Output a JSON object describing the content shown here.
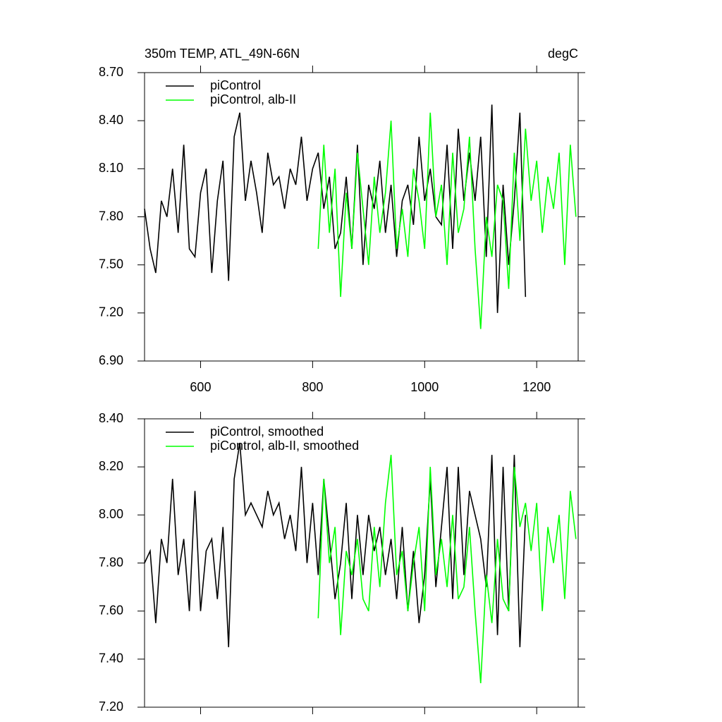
{
  "chart_data": [
    {
      "type": "line",
      "title": "350m TEMP, ATL_49N-66N",
      "units": "degC",
      "x": [
        500,
        510,
        520,
        530,
        540,
        550,
        560,
        570,
        580,
        590,
        600,
        610,
        620,
        630,
        640,
        650,
        660,
        670,
        680,
        690,
        700,
        710,
        720,
        730,
        740,
        750,
        760,
        770,
        780,
        790,
        800,
        810,
        820,
        830,
        840,
        850,
        860,
        870,
        880,
        890,
        900,
        910,
        920,
        930,
        940,
        950,
        960,
        970,
        980,
        990,
        1000,
        1010,
        1020,
        1030,
        1040,
        1050,
        1060,
        1070,
        1080,
        1090,
        1100,
        1110,
        1120,
        1130,
        1140,
        1150,
        1160,
        1170,
        1180,
        1190,
        1200,
        1210,
        1220,
        1230,
        1240,
        1250,
        1260,
        1270
      ],
      "series": [
        {
          "name": "piControl",
          "color": "#000000",
          "values": [
            7.85,
            7.6,
            7.45,
            7.9,
            7.8,
            8.1,
            7.7,
            8.25,
            7.6,
            7.55,
            7.95,
            8.1,
            7.45,
            7.9,
            8.15,
            7.4,
            8.3,
            8.45,
            7.9,
            8.15,
            7.95,
            7.7,
            8.2,
            8.0,
            8.05,
            7.85,
            8.1,
            8.0,
            8.3,
            7.9,
            8.1,
            8.2,
            7.85,
            8.05,
            7.6,
            7.7,
            8.05,
            7.6,
            8.25,
            7.5,
            8.0,
            7.85,
            8.15,
            7.7,
            8.0,
            7.55,
            7.9,
            8.0,
            7.75,
            8.3,
            7.9,
            8.1,
            7.8,
            7.75,
            8.25,
            7.6,
            8.35,
            7.9,
            8.2,
            7.9,
            8.3,
            7.55,
            8.5,
            7.2,
            8.0,
            7.5,
            7.9,
            8.45,
            7.3,
            null,
            null,
            null,
            null,
            null,
            null,
            null,
            null,
            null
          ]
        },
        {
          "name": "piControl, alb-II",
          "color": "#00ff00",
          "values": [
            null,
            null,
            null,
            null,
            null,
            null,
            null,
            null,
            null,
            null,
            null,
            null,
            null,
            null,
            null,
            null,
            null,
            null,
            null,
            null,
            null,
            null,
            null,
            null,
            null,
            null,
            null,
            null,
            null,
            null,
            null,
            7.6,
            8.25,
            7.7,
            8.1,
            7.3,
            7.95,
            7.6,
            8.2,
            7.85,
            7.5,
            8.05,
            7.7,
            7.95,
            8.4,
            7.6,
            7.85,
            7.55,
            8.1,
            7.9,
            7.6,
            8.45,
            7.8,
            8.0,
            7.5,
            8.2,
            7.7,
            7.85,
            8.3,
            7.6,
            7.1,
            7.8,
            7.55,
            8.0,
            7.9,
            7.35,
            8.2,
            7.65,
            8.35,
            7.9,
            8.15,
            7.7,
            8.05,
            7.85,
            8.2,
            7.5,
            8.25,
            7.8
          ]
        }
      ],
      "xlim": [
        500,
        1274
      ],
      "xticks": [
        600,
        800,
        1000,
        1200
      ],
      "show_xtick_labels": true,
      "ylim": [
        6.9,
        8.7
      ],
      "yticks": [
        {
          "value": 6.9,
          "label": "6.90"
        },
        {
          "value": 7.2,
          "label": "7.20"
        },
        {
          "value": 7.5,
          "label": "7.50"
        },
        {
          "value": 7.8,
          "label": "7.80"
        },
        {
          "value": 8.1,
          "label": "8.10"
        },
        {
          "value": 8.4,
          "label": "8.40"
        },
        {
          "value": 8.7,
          "label": "8.70"
        }
      ]
    },
    {
      "type": "line",
      "x": [
        500,
        510,
        520,
        530,
        540,
        550,
        560,
        570,
        580,
        590,
        600,
        610,
        620,
        630,
        640,
        650,
        660,
        670,
        680,
        690,
        700,
        710,
        720,
        730,
        740,
        750,
        760,
        770,
        780,
        790,
        800,
        810,
        820,
        830,
        840,
        850,
        860,
        870,
        880,
        890,
        900,
        910,
        920,
        930,
        940,
        950,
        960,
        970,
        980,
        990,
        1000,
        1010,
        1020,
        1030,
        1040,
        1050,
        1060,
        1070,
        1080,
        1090,
        1100,
        1110,
        1120,
        1130,
        1140,
        1150,
        1160,
        1170,
        1180,
        1190,
        1200,
        1210,
        1220,
        1230,
        1240,
        1250,
        1260,
        1270
      ],
      "series": [
        {
          "name": "piControl, smoothed",
          "color": "#000000",
          "values": [
            7.8,
            7.85,
            7.55,
            7.9,
            7.8,
            8.15,
            7.75,
            7.9,
            7.6,
            8.1,
            7.6,
            7.85,
            7.9,
            7.65,
            7.95,
            7.45,
            8.15,
            8.3,
            8.0,
            8.05,
            8.0,
            7.95,
            8.1,
            8.0,
            8.05,
            7.9,
            8.0,
            7.85,
            8.2,
            7.8,
            8.05,
            7.75,
            8.15,
            7.9,
            7.65,
            7.8,
            8.05,
            7.65,
            8.0,
            7.75,
            8.0,
            7.85,
            7.95,
            7.75,
            7.9,
            7.65,
            7.95,
            7.6,
            7.85,
            7.55,
            7.75,
            8.15,
            7.7,
            7.95,
            8.2,
            7.65,
            8.2,
            7.75,
            8.1,
            8.0,
            7.9,
            7.7,
            8.25,
            7.5,
            8.2,
            7.6,
            8.25,
            7.45,
            8.0,
            null,
            null,
            null,
            null,
            null,
            null,
            null,
            null,
            null
          ]
        },
        {
          "name": "piControl, alb-II, smoothed",
          "color": "#00ff00",
          "values": [
            null,
            null,
            null,
            null,
            null,
            null,
            null,
            null,
            null,
            null,
            null,
            null,
            null,
            null,
            null,
            null,
            null,
            null,
            null,
            null,
            null,
            null,
            null,
            null,
            null,
            null,
            null,
            null,
            null,
            null,
            null,
            7.57,
            8.15,
            7.8,
            7.95,
            7.5,
            7.85,
            7.75,
            7.9,
            7.65,
            7.6,
            7.95,
            7.7,
            8.05,
            8.25,
            7.75,
            7.85,
            7.6,
            7.8,
            7.95,
            7.6,
            8.2,
            7.75,
            7.9,
            7.7,
            8.0,
            7.65,
            7.7,
            7.95,
            7.6,
            7.3,
            7.75,
            7.55,
            7.9,
            7.65,
            7.6,
            8.2,
            7.95,
            8.05,
            7.85,
            8.05,
            7.6,
            7.95,
            7.8,
            8.0,
            7.65,
            8.1,
            7.9
          ]
        }
      ],
      "xlim": [
        500,
        1274
      ],
      "xticks": [
        600,
        800,
        1000,
        1200
      ],
      "show_xtick_labels": false,
      "ylim": [
        7.2,
        8.4
      ],
      "yticks": [
        {
          "value": 7.2,
          "label": "7.20"
        },
        {
          "value": 7.4,
          "label": "7.40"
        },
        {
          "value": 7.6,
          "label": "7.60"
        },
        {
          "value": 7.8,
          "label": "7.80"
        },
        {
          "value": 8.0,
          "label": "8.00"
        },
        {
          "value": 8.2,
          "label": "8.20"
        },
        {
          "value": 8.4,
          "label": "8.40"
        }
      ]
    }
  ]
}
